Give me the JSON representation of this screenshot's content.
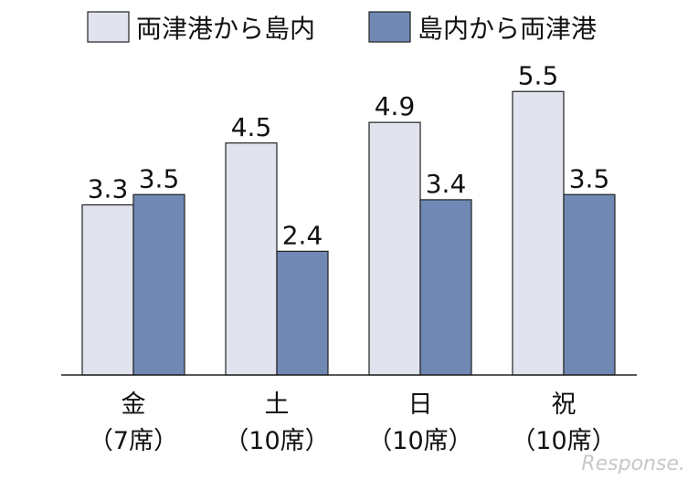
{
  "chart_data": {
    "type": "bar",
    "categories": [
      "金\n（7席）",
      "土\n（10席）",
      "日\n（10席）",
      "祝\n（10席）"
    ],
    "series": [
      {
        "name": "両津港から島内",
        "color": "#e1e4ee",
        "values": [
          3.3,
          4.5,
          4.9,
          5.5
        ]
      },
      {
        "name": "島内から両津港",
        "color": "#7088b4",
        "values": [
          3.5,
          2.4,
          3.4,
          3.5
        ]
      }
    ],
    "legend": "top",
    "watermark": "Response."
  }
}
